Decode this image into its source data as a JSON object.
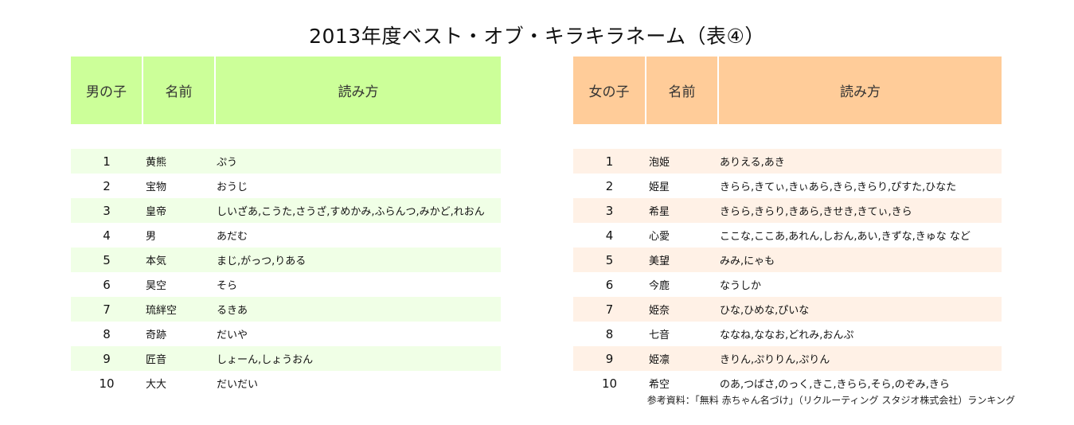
{
  "title": "2013年度ベスト・オブ・キラキラネーム（表④）",
  "boys": {
    "headers": [
      "男の子",
      "名前",
      "読み方"
    ],
    "rows": [
      {
        "rank": "1",
        "name": "黄熊",
        "reading": "ぷう"
      },
      {
        "rank": "2",
        "name": "宝物",
        "reading": "おうじ"
      },
      {
        "rank": "3",
        "name": "皇帝",
        "reading": "しいざあ,こうた,さうざ,すめかみ,ふらんつ,みかど,れおん"
      },
      {
        "rank": "4",
        "name": "男",
        "reading": "あだむ"
      },
      {
        "rank": "5",
        "name": "本気",
        "reading": "まじ,がっつ,りある"
      },
      {
        "rank": "6",
        "name": "昊空",
        "reading": "そら"
      },
      {
        "rank": "7",
        "name": "琉絆空",
        "reading": "るきあ"
      },
      {
        "rank": "8",
        "name": "奇跡",
        "reading": "だいや"
      },
      {
        "rank": "9",
        "name": "匠音",
        "reading": "しょーん,しょうおん"
      },
      {
        "rank": "10",
        "name": "大大",
        "reading": "だいだい"
      }
    ]
  },
  "girls": {
    "headers": [
      "女の子",
      "名前",
      "読み方"
    ],
    "rows": [
      {
        "rank": "1",
        "name": "泡姫",
        "reading": "ありえる,あき"
      },
      {
        "rank": "2",
        "name": "姫星",
        "reading": "きらら,きてぃ,きぃあら,きら,きらり,ぴすた,ひなた"
      },
      {
        "rank": "3",
        "name": "希星",
        "reading": "きらら,きらり,きあら,きせき,きてぃ,きら"
      },
      {
        "rank": "4",
        "name": "心愛",
        "reading": "ここな,ここあ,あれん,しおん,あい,きずな,きゅな など"
      },
      {
        "rank": "5",
        "name": "美望",
        "reading": "みみ,にゃも"
      },
      {
        "rank": "6",
        "name": "今鹿",
        "reading": "なうしか"
      },
      {
        "rank": "7",
        "name": "姫奈",
        "reading": "ひな,ひめな,ぴいな"
      },
      {
        "rank": "8",
        "name": "七音",
        "reading": "ななね,ななお,どれみ,おんぷ"
      },
      {
        "rank": "9",
        "name": "姫凛",
        "reading": "きりん,ぷりりん,ぷりん"
      },
      {
        "rank": "10",
        "name": "希空",
        "reading": "のあ,つばさ,のっく,きこ,きらら,そら,のぞみ,きら"
      }
    ]
  },
  "source": "参考資料：「無料 赤ちゃん名づけ」（リクルーティング スタジオ株式会社）ランキング",
  "colors": {
    "boys_header": "#ccff99",
    "boys_stripe": "#f0ffe6",
    "girls_header": "#ffcc99",
    "girls_stripe": "#fff1e6"
  }
}
